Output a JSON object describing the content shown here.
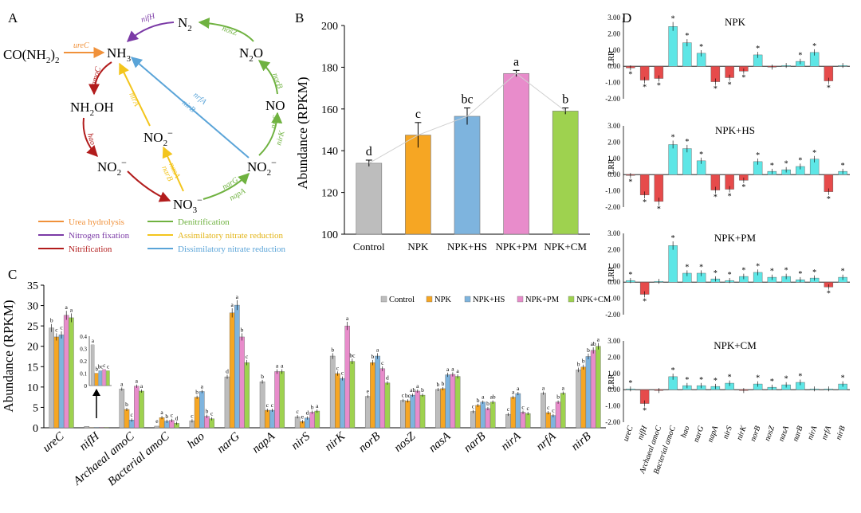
{
  "colors": {
    "urea": "#f0913a",
    "nfix": "#7b3aa6",
    "nitr": "#b21c1c",
    "denit": "#6fb240",
    "assim": "#f3c51d",
    "dissim": "#5aa4d8",
    "control": "#bdbdbd",
    "npk": "#f6a623",
    "npkhs": "#7eb4de",
    "npkpm": "#e88ccb",
    "npkcm": "#9ed24f",
    "pos": "#5ee6e6",
    "neg": "#e64b4b"
  },
  "panel_a": {
    "label": "A",
    "nodes": {
      "urea_main": "CO(NH",
      "urea_sub": "2",
      "urea_end": ")",
      "urea_sub2": "2",
      "nh3_main": "NH",
      "nh3_sub": "3",
      "n2_main": "N",
      "n2_sub": "2",
      "n2o_main": "N",
      "n2o_sub": "2",
      "n2o_end": "O",
      "no": "NO",
      "nh2oh": "NH",
      "nh2oh_sub": "2",
      "nh2oh_end": "OH",
      "no2a_main": "NO",
      "no2a_sub": "2",
      "no2a_sup": "−",
      "no2b_main": "NO",
      "no2b_sub": "2",
      "no2b_sup": "−",
      "no2c_main": "NO",
      "no2c_sub": "2",
      "no2c_sup": "−",
      "no3_main": "NO",
      "no3_sub": "3",
      "no3_sup": "−"
    },
    "genes": {
      "ureC": "ureC",
      "nifH": "nifH",
      "nosZ": "nosZ",
      "norB": "norB",
      "nirSK_a": "nirS",
      "nirSK_b": "nirK",
      "amoC": "amoC",
      "hao": "hao",
      "nirA": "nirA",
      "nasA_a": "nasA",
      "nasA_b": "narB",
      "narG": "narG",
      "napA": "napA",
      "nrfA": "nrfA",
      "nirB": "nirB"
    },
    "legend": [
      {
        "label": "Urea hydrolysis",
        "color": "#f0913a"
      },
      {
        "label": "Denitrification",
        "color": "#6fb240"
      },
      {
        "label": "Nitrogen fixation",
        "color": "#7b3aa6"
      },
      {
        "label": "Assimilatory nitrate reduction",
        "color": "#f3c51d"
      },
      {
        "label": "Nitrification",
        "color": "#b21c1c"
      },
      {
        "label": "Dissimilatory nitrate reduction",
        "color": "#5aa4d8"
      }
    ]
  },
  "chart_data": [
    {
      "id": "B",
      "type": "bar",
      "label": "B",
      "ylabel": "Abundance (RPKM)",
      "ylim": [
        100,
        200
      ],
      "yticks": [
        100,
        120,
        140,
        160,
        180,
        200
      ],
      "categories": [
        "Control",
        "NPK",
        "NPK+HS",
        "NPK+PM",
        "NPK+CM"
      ],
      "values": [
        134,
        147.5,
        156.5,
        177,
        159
      ],
      "errors": [
        1.5,
        6,
        4,
        1.5,
        1.5
      ],
      "letters": [
        "d",
        "c",
        "bc",
        "a",
        "b"
      ]
    },
    {
      "id": "C",
      "type": "bar",
      "label": "C",
      "ylabel": "Abundance (RPKM)",
      "ylim": [
        0,
        35
      ],
      "yticks": [
        0,
        5,
        10,
        15,
        20,
        25,
        30,
        35
      ],
      "series_names": [
        "Control",
        "NPK",
        "NPK+HS",
        "NPK+PM",
        "NPK+CM"
      ],
      "categories": [
        "ureC",
        "nifH",
        "Archaeal amoC",
        "Bacterial amoC",
        "hao",
        "narG",
        "napA",
        "nirS",
        "nirK",
        "norB",
        "nosZ",
        "nasA",
        "narB",
        "nirA",
        "nrfA",
        "nirB"
      ],
      "values": [
        [
          24.5,
          22.3,
          22.8,
          27.6,
          27.0
        ],
        [
          0.33,
          0.1,
          0.12,
          0.13,
          0.12
        ],
        [
          9.5,
          4.5,
          1.9,
          10.2,
          9.0
        ],
        [
          0.4,
          2.5,
          1.6,
          1.8,
          1.1
        ],
        [
          1.7,
          7.5,
          8.9,
          2.8,
          2.2
        ],
        [
          12.5,
          28.2,
          30.1,
          22.3,
          16.0
        ],
        [
          11.3,
          4.3,
          4.3,
          13.8,
          13.8
        ],
        [
          2.7,
          1.5,
          2.4,
          3.8,
          4.1
        ],
        [
          17.6,
          13.3,
          12.1,
          25.0,
          16.3
        ],
        [
          7.7,
          16.0,
          17.6,
          14.5,
          11.0
        ],
        [
          6.7,
          6.6,
          8.0,
          9.0,
          8.0
        ],
        [
          9.4,
          9.6,
          13.0,
          13.1,
          12.6
        ],
        [
          4.0,
          5.5,
          6.3,
          4.7,
          6.3
        ],
        [
          3.3,
          7.5,
          8.4,
          3.8,
          3.5
        ],
        [
          8.5,
          3.7,
          3.0,
          6.3,
          8.5
        ],
        [
          14.2,
          14.9,
          17.5,
          19.0,
          20.0
        ]
      ],
      "letters": [
        [
          "b",
          "c",
          "c",
          "a",
          "a"
        ],
        [
          "a",
          "b",
          "bc",
          "c",
          "c"
        ],
        [
          "a",
          "b",
          "c",
          "a",
          "a"
        ],
        [
          "e",
          "a",
          "b",
          "c",
          "d"
        ],
        [
          "c",
          "b",
          "a",
          "b",
          "c"
        ],
        [
          "d",
          "a",
          "a",
          "b",
          "c"
        ],
        [
          "b",
          "c",
          "c",
          "a",
          "a"
        ],
        [
          "c",
          "e",
          "d",
          "b",
          "a"
        ],
        [
          "b",
          "c",
          "c",
          "a",
          "bc"
        ],
        [
          "e",
          "b",
          "a",
          "c",
          "d"
        ],
        [
          "c",
          "bc",
          "ab",
          "a",
          "b"
        ],
        [
          "b",
          "b",
          "a",
          "a",
          "a"
        ],
        [
          "c",
          "b",
          "a",
          "b",
          "ab"
        ],
        [
          "c",
          "a",
          "a",
          "c",
          "c"
        ],
        [
          "a",
          "c",
          "c",
          "b",
          "a"
        ],
        [
          "b",
          "b",
          "b",
          "ab",
          "a"
        ]
      ],
      "inset": {
        "ylim": [
          0,
          0.4
        ],
        "yticks": [
          "0.4",
          "0.3",
          "0.2",
          "0.1",
          "0"
        ],
        "values": [
          0.33,
          0.1,
          0.12,
          0.13,
          0.12
        ],
        "letters": [
          "a",
          "b",
          "bc",
          "c",
          "c"
        ]
      }
    },
    {
      "id": "D",
      "type": "bar",
      "label": "D",
      "ylabel": "LRR",
      "ylim": [
        -2,
        3
      ],
      "yticks": [
        "3.00",
        "2.00",
        "1.00",
        "0.00",
        "-1.00",
        "-2.00"
      ],
      "categories": [
        "ureC",
        "nifH",
        "Archaeal amoC",
        "Bacterial amoC",
        "hao",
        "narG",
        "napA",
        "nirS",
        "nirK",
        "norB",
        "nosZ",
        "nasA",
        "narB",
        "nirA",
        "nrfA",
        "nirB"
      ],
      "panels": [
        {
          "title": "NPK",
          "values": [
            -0.1,
            -0.85,
            -0.75,
            2.45,
            1.45,
            0.8,
            -0.95,
            -0.7,
            -0.3,
            0.7,
            -0.05,
            0.05,
            0.3,
            0.85,
            -0.9,
            0.05
          ],
          "stars": [
            1,
            1,
            1,
            1,
            1,
            1,
            1,
            1,
            1,
            1,
            0,
            0,
            1,
            1,
            1,
            0
          ]
        },
        {
          "title": "NPK+HS",
          "values": [
            -0.05,
            -1.25,
            -1.65,
            1.85,
            1.6,
            0.85,
            -0.95,
            -0.9,
            -0.35,
            0.8,
            0.2,
            0.3,
            0.5,
            0.95,
            -1.05,
            0.2
          ],
          "stars": [
            1,
            1,
            1,
            1,
            1,
            1,
            1,
            1,
            1,
            1,
            1,
            1,
            1,
            1,
            1,
            1
          ]
        },
        {
          "title": "NPK+PM",
          "values": [
            0.1,
            -0.75,
            0.05,
            2.25,
            0.55,
            0.55,
            0.2,
            0.1,
            0.35,
            0.6,
            0.3,
            0.35,
            0.15,
            0.25,
            -0.3,
            0.3
          ],
          "stars": [
            1,
            1,
            0,
            1,
            1,
            1,
            1,
            1,
            1,
            1,
            1,
            1,
            1,
            1,
            1,
            1
          ]
        },
        {
          "title": "NPK+CM",
          "values": [
            0.05,
            -0.85,
            -0.05,
            0.8,
            0.25,
            0.25,
            0.2,
            0.4,
            -0.05,
            0.35,
            0.15,
            0.3,
            0.45,
            0.05,
            0.05,
            0.35
          ],
          "stars": [
            1,
            1,
            0,
            1,
            1,
            1,
            1,
            1,
            0,
            1,
            1,
            1,
            1,
            0,
            0,
            1
          ]
        }
      ]
    }
  ]
}
